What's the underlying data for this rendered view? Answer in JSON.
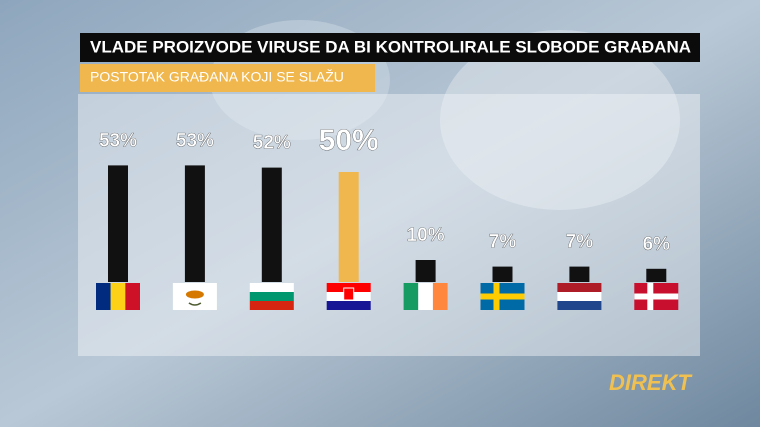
{
  "chart_data": {
    "type": "bar",
    "title": "VLADE PROIZVODE VIRUSE DA BI KONTROLIRALE SLOBODE GRAĐANA",
    "subtitle": "POSTOTAK GRAĐANA KOJI SE SLAŽU",
    "categories": [
      null,
      null,
      null,
      null,
      null,
      null,
      null,
      null
    ],
    "values": [
      53,
      53,
      52,
      50,
      10,
      7,
      7,
      6
    ],
    "value_labels": [
      "53%",
      "53%",
      "52%",
      "50%",
      "10%",
      "7%",
      "7%",
      "6%"
    ],
    "colors": [
      "#111111",
      "#111111",
      "#111111",
      "#f0b74e",
      "#111111",
      "#111111",
      "#111111",
      "#111111"
    ]
  },
  "logo": "DIREKT"
}
